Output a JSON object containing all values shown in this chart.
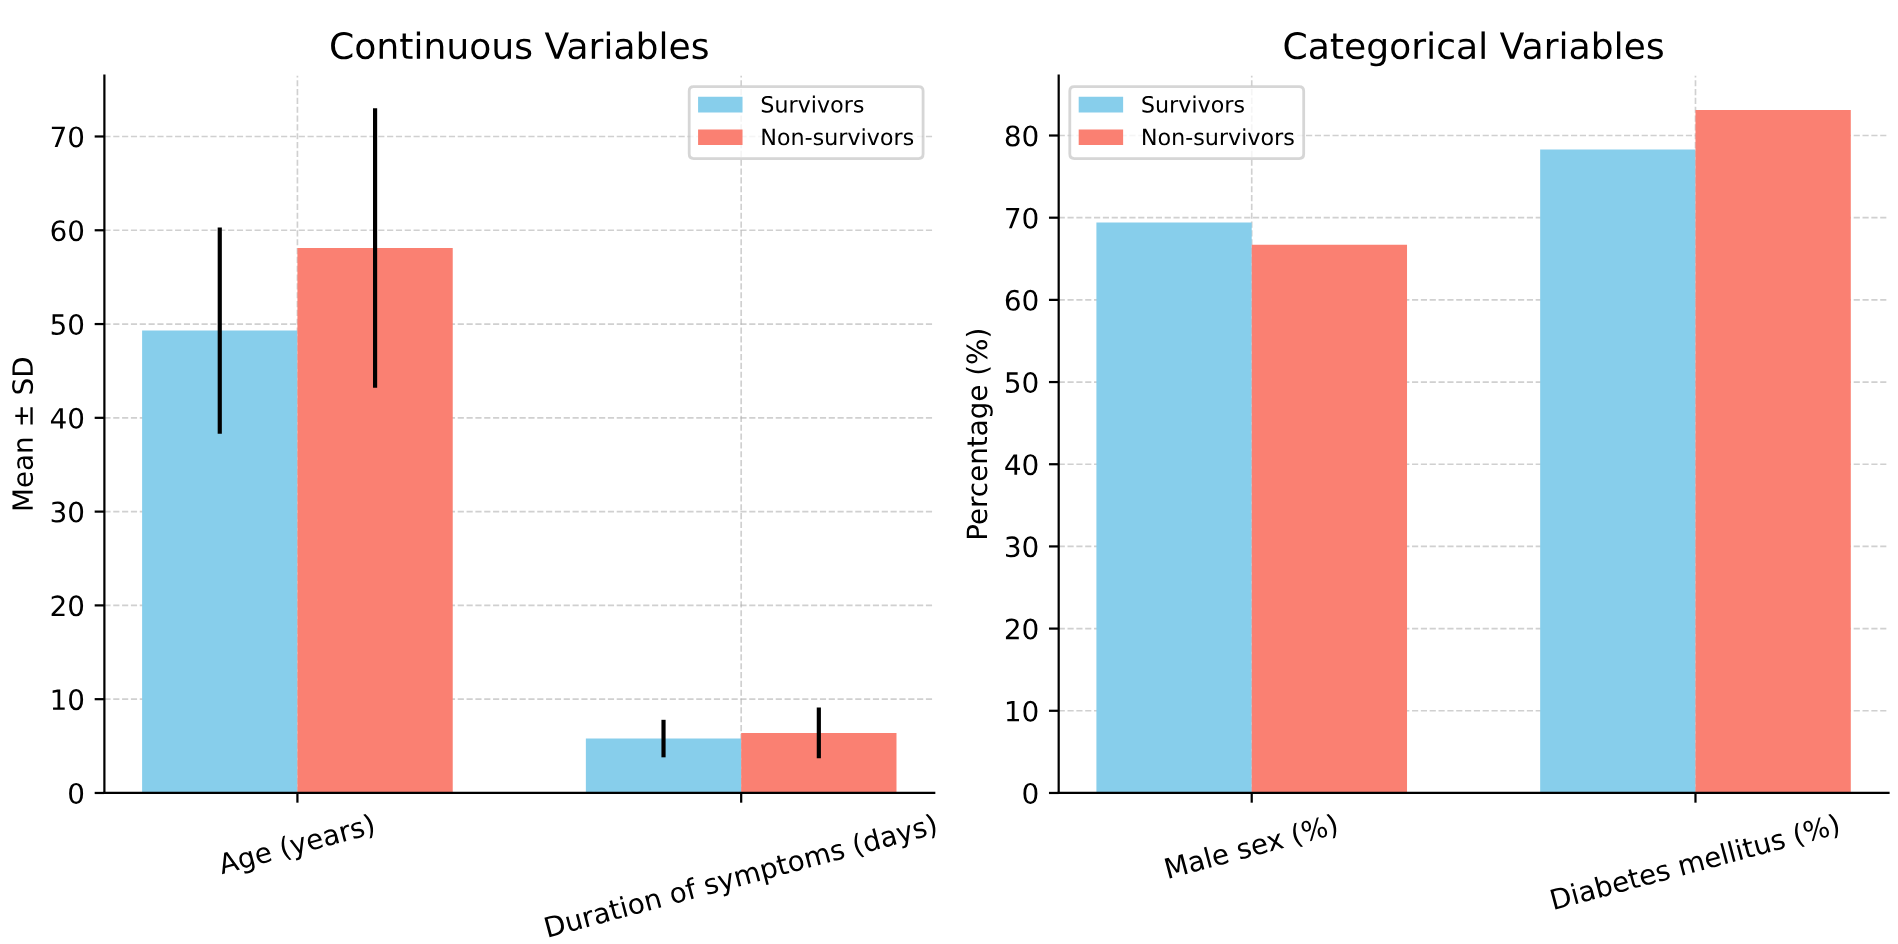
{
  "chart_data": [
    {
      "type": "bar",
      "title": "Continuous Variables",
      "ylabel": "Mean ± SD",
      "categories": [
        "Age (years)",
        "Duration of symptoms (days)"
      ],
      "ylim": [
        0,
        76.5
      ],
      "yticks": [
        0,
        10,
        20,
        30,
        40,
        50,
        60,
        70
      ],
      "grid": true,
      "legend": "top right",
      "series": [
        {
          "name": "Survivors",
          "color": "#87ceeb",
          "values": [
            49.3,
            5.8
          ],
          "errors": [
            11,
            2
          ]
        },
        {
          "name": "Non-survivors",
          "color": "#fa8072",
          "values": [
            58.1,
            6.4
          ],
          "errors": [
            14.9,
            2.7
          ]
        }
      ]
    },
    {
      "type": "bar",
      "title": "Categorical Variables",
      "ylabel": "Percentage (%)",
      "categories": [
        "Male sex (%)",
        "Diabetes mellitus (%)"
      ],
      "ylim": [
        0,
        87.3
      ],
      "yticks": [
        0,
        10,
        20,
        30,
        40,
        50,
        60,
        70,
        80
      ],
      "grid": true,
      "legend": "top left",
      "series": [
        {
          "name": "Survivors",
          "color": "#87ceeb",
          "values": [
            69.4,
            78.3
          ]
        },
        {
          "name": "Non-survivors",
          "color": "#fa8072",
          "values": [
            66.7,
            83.1
          ]
        }
      ]
    }
  ]
}
